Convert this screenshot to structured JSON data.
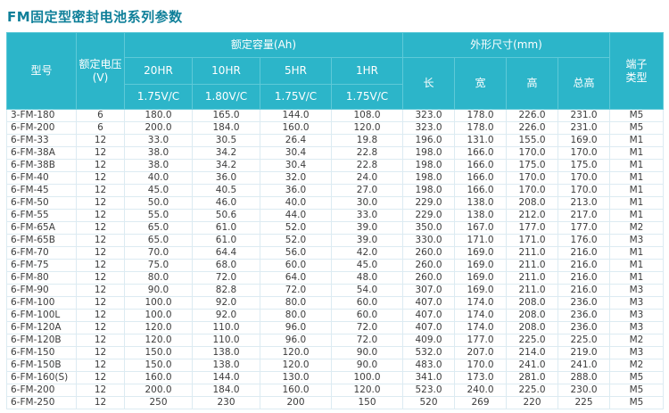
{
  "page": {
    "title": "FM固定型密封电池系列参数"
  },
  "table": {
    "headers": {
      "model": "型号",
      "voltage": "额定电压\n(V)",
      "capacity_group": "额定容量(Ah)",
      "capacity_cols": [
        {
          "hr": "20HR",
          "vc": "1.75V/C"
        },
        {
          "hr": "10HR",
          "vc": "1.80V/C"
        },
        {
          "hr": "5HR",
          "vc": "1.75V/C"
        },
        {
          "hr": "1HR",
          "vc": "1.75V/C"
        }
      ],
      "dimension_group": "外形尺寸(mm)",
      "dimension_cols": [
        "长",
        "宽",
        "高",
        "总高"
      ],
      "terminal": "端子\n类型"
    },
    "rows": [
      [
        "3-FM-180",
        "6",
        "180.0",
        "165.0",
        "144.0",
        "108.0",
        "323.0",
        "178.0",
        "226.0",
        "231.0",
        "M5"
      ],
      [
        "6-FM-200",
        "6",
        "200.0",
        "184.0",
        "160.0",
        "120.0",
        "323.0",
        "178.0",
        "226.0",
        "231.0",
        "M5"
      ],
      [
        "6-FM-33",
        "12",
        "33.0",
        "30.5",
        "26.4",
        "19.8",
        "196.0",
        "131.0",
        "155.0",
        "169.0",
        "M1"
      ],
      [
        "6-FM-38A",
        "12",
        "38.0",
        "34.2",
        "30.4",
        "22.8",
        "198.0",
        "166.0",
        "170.0",
        "170.0",
        "M1"
      ],
      [
        "6-FM-38B",
        "12",
        "38.0",
        "34.2",
        "30.4",
        "22.8",
        "198.0",
        "166.0",
        "175.0",
        "175.0",
        "M1"
      ],
      [
        "6-FM-40",
        "12",
        "40.0",
        "36.0",
        "32.0",
        "24.0",
        "198.0",
        "166.0",
        "170.0",
        "170.0",
        "M1"
      ],
      [
        "6-FM-45",
        "12",
        "45.0",
        "40.5",
        "36.0",
        "27.0",
        "198.0",
        "166.0",
        "170.0",
        "170.0",
        "M1"
      ],
      [
        "6-FM-50",
        "12",
        "50.0",
        "46.0",
        "40.0",
        "30.0",
        "229.0",
        "138.0",
        "208.0",
        "213.0",
        "M1"
      ],
      [
        "6-FM-55",
        "12",
        "55.0",
        "50.6",
        "44.0",
        "33.0",
        "229.0",
        "138.0",
        "212.0",
        "217.0",
        "M1"
      ],
      [
        "6-FM-65A",
        "12",
        "65.0",
        "61.0",
        "52.0",
        "39.0",
        "350.0",
        "167.0",
        "177.0",
        "177.0",
        "M2"
      ],
      [
        "6-FM-65B",
        "12",
        "65.0",
        "61.0",
        "52.0",
        "39.0",
        "330.0",
        "171.0",
        "171.0",
        "176.0",
        "M3"
      ],
      [
        "6-FM-70",
        "12",
        "70.0",
        "64.4",
        "56.0",
        "42.0",
        "260.0",
        "169.0",
        "211.0",
        "216.0",
        "M1"
      ],
      [
        "6-FM-75",
        "12",
        "75.0",
        "68.0",
        "60.0",
        "45.0",
        "260.0",
        "169.0",
        "211.0",
        "216.0",
        "M1"
      ],
      [
        "6-FM-80",
        "12",
        "80.0",
        "72.0",
        "64.0",
        "48.0",
        "260.0",
        "169.0",
        "211.0",
        "216.0",
        "M1"
      ],
      [
        "6-FM-90",
        "12",
        "90.0",
        "82.8",
        "72.0",
        "54.0",
        "307.0",
        "169.0",
        "211.0",
        "216.0",
        "M3"
      ],
      [
        "6-FM-100",
        "12",
        "100.0",
        "92.0",
        "80.0",
        "60.0",
        "407.0",
        "174.0",
        "208.0",
        "236.0",
        "M3"
      ],
      [
        "6-FM-100L",
        "12",
        "100.0",
        "92.0",
        "80.0",
        "60.0",
        "407.0",
        "174.0",
        "208.0",
        "236.0",
        "M3"
      ],
      [
        "6-FM-120A",
        "12",
        "120.0",
        "110.0",
        "96.0",
        "72.0",
        "407.0",
        "174.0",
        "208.0",
        "236.0",
        "M3"
      ],
      [
        "6-FM-120B",
        "12",
        "120.0",
        "110.0",
        "96.0",
        "72.0",
        "409.0",
        "177.0",
        "225.0",
        "225.0",
        "M2"
      ],
      [
        "6-FM-150",
        "12",
        "150.0",
        "138.0",
        "120.0",
        "90.0",
        "532.0",
        "207.0",
        "214.0",
        "219.0",
        "M3"
      ],
      [
        "6-FM-150B",
        "12",
        "150.0",
        "138.0",
        "120.0",
        "90.0",
        "483.0",
        "170.0",
        "241.0",
        "241.0",
        "M2"
      ],
      [
        "6-FM-160(S)",
        "12",
        "160.0",
        "144.0",
        "130.0",
        "100.0",
        "341.0",
        "173.0",
        "281.0",
        "288.0",
        "M5"
      ],
      [
        "6-FM-200",
        "12",
        "200.0",
        "184.0",
        "160.0",
        "120.0",
        "523.0",
        "240.0",
        "225.0",
        "230.0",
        "M5"
      ],
      [
        "6-FM-250",
        "12",
        "250",
        "230",
        "200",
        "150",
        "520",
        "269",
        "220",
        "225",
        "M5"
      ]
    ]
  }
}
